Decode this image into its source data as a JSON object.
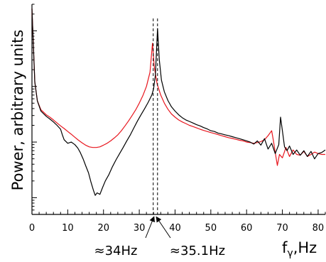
{
  "chart_data": {
    "type": "line",
    "title": "",
    "xlabel": "f",
    "xlabel_sub": "γ",
    "xlabel_unit": ",Hz",
    "ylabel": "Power, arbitrary units",
    "xlim": [
      0,
      82
    ],
    "x_ticks": [
      0,
      10,
      20,
      30,
      40,
      50,
      60,
      70,
      80
    ],
    "y_scale": "log",
    "ylim": [
      0.05,
      300
    ],
    "grid": false,
    "legend": "none",
    "series": [
      {
        "color": "#000000",
        "points": [
          [
            0,
            250
          ],
          [
            0.3,
            80
          ],
          [
            0.8,
            12
          ],
          [
            1.5,
            5.5
          ],
          [
            2.5,
            3.6
          ],
          [
            4,
            2.9
          ],
          [
            5,
            2.6
          ],
          [
            6,
            2.3
          ],
          [
            7,
            2.0
          ],
          [
            8,
            1.7
          ],
          [
            8.5,
            1.35
          ],
          [
            9,
            1.1
          ],
          [
            10,
            0.95
          ],
          [
            11,
            1.0
          ],
          [
            12,
            0.9
          ],
          [
            12.8,
            0.78
          ],
          [
            13.5,
            0.65
          ],
          [
            14.3,
            0.5
          ],
          [
            15,
            0.38
          ],
          [
            15.8,
            0.28
          ],
          [
            16.5,
            0.19
          ],
          [
            17.2,
            0.135
          ],
          [
            17.7,
            0.11
          ],
          [
            18.2,
            0.122
          ],
          [
            19,
            0.115
          ],
          [
            19.7,
            0.15
          ],
          [
            20.5,
            0.2
          ],
          [
            21.5,
            0.26
          ],
          [
            22.5,
            0.36
          ],
          [
            23.5,
            0.48
          ],
          [
            24.5,
            0.62
          ],
          [
            25.5,
            0.8
          ],
          [
            26.5,
            1.05
          ],
          [
            27.5,
            1.35
          ],
          [
            28.5,
            1.8
          ],
          [
            29.5,
            2.4
          ],
          [
            30.5,
            3.1
          ],
          [
            31.5,
            4.0
          ],
          [
            32.5,
            5.2
          ],
          [
            33.5,
            7.0
          ],
          [
            34,
            9.0
          ],
          [
            34.5,
            16
          ],
          [
            35.1,
            110
          ],
          [
            35.6,
            30
          ],
          [
            36.2,
            13
          ],
          [
            37,
            8.0
          ],
          [
            38,
            5.6
          ],
          [
            39,
            4.3
          ],
          [
            40,
            3.6
          ],
          [
            41,
            3.1
          ],
          [
            42,
            2.75
          ],
          [
            43,
            2.5
          ],
          [
            44,
            2.35
          ],
          [
            45,
            2.2
          ],
          [
            46,
            2.05
          ],
          [
            47,
            1.95
          ],
          [
            48,
            1.82
          ],
          [
            49,
            1.72
          ],
          [
            50,
            1.6
          ],
          [
            51,
            1.55
          ],
          [
            52,
            1.45
          ],
          [
            53,
            1.4
          ],
          [
            54,
            1.35
          ],
          [
            55,
            1.3
          ],
          [
            56,
            1.25
          ],
          [
            57,
            1.2
          ],
          [
            58,
            1.15
          ],
          [
            59,
            1.1
          ],
          [
            60,
            1.05
          ],
          [
            61,
            1.0
          ],
          [
            62,
            0.92
          ],
          [
            63,
            1.05
          ],
          [
            64,
            0.88
          ],
          [
            65,
            1.15
          ],
          [
            66,
            0.75
          ],
          [
            67,
            0.95
          ],
          [
            68,
            0.62
          ],
          [
            69,
            0.9
          ],
          [
            69.5,
            2.8
          ],
          [
            70,
            1.6
          ],
          [
            70.6,
            0.82
          ],
          [
            71.3,
            0.7
          ],
          [
            72,
            0.85
          ],
          [
            73,
            0.6
          ],
          [
            74,
            0.72
          ],
          [
            75,
            0.58
          ],
          [
            76,
            0.7
          ],
          [
            77,
            0.55
          ],
          [
            78,
            0.68
          ],
          [
            79,
            0.5
          ],
          [
            80,
            0.62
          ],
          [
            81,
            0.65
          ],
          [
            82,
            0.72
          ]
        ]
      },
      {
        "color": "#e8161e",
        "points": [
          [
            0,
            250
          ],
          [
            0.3,
            80
          ],
          [
            0.8,
            12
          ],
          [
            1.5,
            5.5
          ],
          [
            2.5,
            3.8
          ],
          [
            4,
            3.1
          ],
          [
            5,
            2.8
          ],
          [
            6,
            2.5
          ],
          [
            7,
            2.2
          ],
          [
            8,
            1.95
          ],
          [
            9,
            1.75
          ],
          [
            10,
            1.55
          ],
          [
            11,
            1.38
          ],
          [
            12,
            1.22
          ],
          [
            13,
            1.08
          ],
          [
            14,
            0.97
          ],
          [
            15,
            0.88
          ],
          [
            16,
            0.82
          ],
          [
            17,
            0.8
          ],
          [
            18,
            0.8
          ],
          [
            19,
            0.82
          ],
          [
            20,
            0.88
          ],
          [
            21,
            0.95
          ],
          [
            22,
            1.05
          ],
          [
            23,
            1.18
          ],
          [
            24,
            1.35
          ],
          [
            25,
            1.6
          ],
          [
            26,
            1.95
          ],
          [
            27,
            2.4
          ],
          [
            28,
            3.0
          ],
          [
            29,
            3.8
          ],
          [
            30,
            5.0
          ],
          [
            31,
            6.8
          ],
          [
            32,
            10
          ],
          [
            33,
            18
          ],
          [
            33.7,
            60
          ],
          [
            34.2,
            22
          ],
          [
            35,
            11
          ],
          [
            36,
            7.0
          ],
          [
            37,
            5.0
          ],
          [
            38,
            3.9
          ],
          [
            39,
            3.2
          ],
          [
            40,
            2.8
          ],
          [
            41,
            2.5
          ],
          [
            42,
            2.3
          ],
          [
            43,
            2.15
          ],
          [
            44,
            2.0
          ],
          [
            45,
            1.9
          ],
          [
            46,
            1.8
          ],
          [
            47,
            1.7
          ],
          [
            48,
            1.62
          ],
          [
            49,
            1.55
          ],
          [
            50,
            1.48
          ],
          [
            51,
            1.42
          ],
          [
            52,
            1.36
          ],
          [
            53,
            1.3
          ],
          [
            54,
            1.25
          ],
          [
            55,
            1.2
          ],
          [
            56,
            1.16
          ],
          [
            57,
            1.12
          ],
          [
            58,
            1.08
          ],
          [
            59,
            1.05
          ],
          [
            60,
            1.0
          ],
          [
            61,
            0.98
          ],
          [
            62,
            0.95
          ],
          [
            63,
            0.98
          ],
          [
            64,
            1.02
          ],
          [
            65,
            1.1
          ],
          [
            66,
            1.3
          ],
          [
            67,
            1.6
          ],
          [
            67.5,
            1.05
          ],
          [
            68,
            0.65
          ],
          [
            68.6,
            0.38
          ],
          [
            69.2,
            0.6
          ],
          [
            70,
            0.52
          ],
          [
            71,
            0.8
          ],
          [
            72,
            0.55
          ],
          [
            73,
            0.72
          ],
          [
            74,
            0.6
          ],
          [
            75,
            0.58
          ],
          [
            76,
            0.68
          ],
          [
            77,
            0.55
          ],
          [
            78,
            0.6
          ],
          [
            79,
            0.66
          ],
          [
            80,
            0.62
          ],
          [
            81,
            0.6
          ],
          [
            82,
            0.6
          ]
        ]
      }
    ],
    "annotations": [
      {
        "label": "≈34Hz",
        "x": 33.9
      },
      {
        "label": "≈35.1Hz",
        "x": 35.1
      }
    ]
  }
}
